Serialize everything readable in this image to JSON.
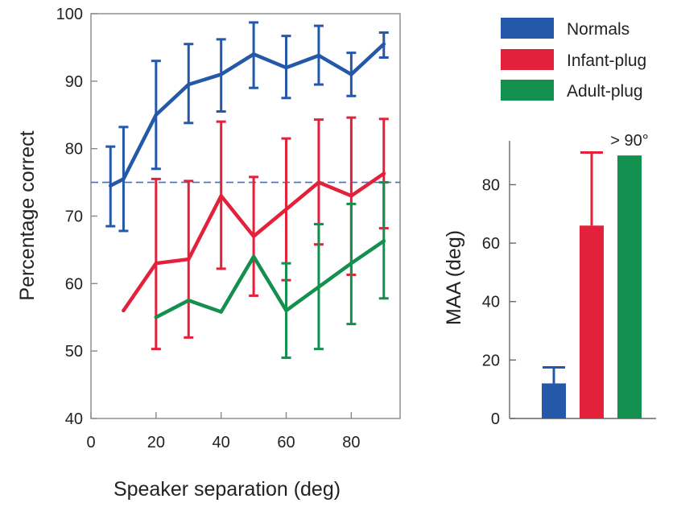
{
  "legend": {
    "placement": "top-right",
    "entries": [
      {
        "label": "Normals",
        "color": "#2458a8"
      },
      {
        "label": "Infant-plug",
        "color": "#e3213a"
      },
      {
        "label": "Adult-plug",
        "color": "#14904e"
      }
    ]
  },
  "chart_data": [
    {
      "type": "line",
      "title": "",
      "xlabel": "Speaker separation (deg)",
      "ylabel": "Percentage correct",
      "xlim": [
        0,
        95
      ],
      "ylim": [
        40,
        100
      ],
      "xticks": [
        0,
        20,
        40,
        60,
        80
      ],
      "yticks": [
        40,
        50,
        60,
        70,
        80,
        90,
        100
      ],
      "grid": false,
      "reference_line": {
        "y": 75,
        "style": "dashed",
        "color": "#4a6fb0"
      },
      "series": [
        {
          "name": "Normals",
          "color": "#2458a8",
          "x": [
            6,
            10,
            20,
            30,
            40,
            50,
            60,
            70,
            80,
            90
          ],
          "y": [
            74.5,
            75.5,
            85,
            89.5,
            91,
            94,
            92,
            93.8,
            91,
            95.5
          ],
          "err_low": [
            68.5,
            67.8,
            77,
            83.8,
            85.5,
            89,
            87.5,
            89.5,
            87.8,
            93.5
          ],
          "err_high": [
            80.3,
            83.2,
            93,
            95.5,
            96.2,
            98.7,
            96.7,
            98.2,
            94.2,
            97.2
          ],
          "error_caps": [
            true,
            true,
            true,
            true,
            true,
            true,
            true,
            true,
            true,
            true
          ]
        },
        {
          "name": "Infant-plug",
          "color": "#e3213a",
          "x": [
            10,
            20,
            30,
            40,
            50,
            60,
            70,
            80,
            90
          ],
          "y": [
            56,
            63,
            63.6,
            73,
            67,
            71,
            75,
            73,
            76.3
          ],
          "err_low": [
            56,
            50.3,
            52,
            62.2,
            58.2,
            60.5,
            65.8,
            61.3,
            68.2
          ],
          "err_high": [
            56,
            75.5,
            75.2,
            84,
            75.8,
            81.5,
            84.3,
            84.6,
            84.4
          ],
          "error_caps": [
            false,
            true,
            true,
            true,
            true,
            true,
            true,
            true,
            true
          ]
        },
        {
          "name": "Adult-plug",
          "color": "#14904e",
          "x": [
            20,
            30,
            40,
            50,
            60,
            70,
            80,
            90
          ],
          "y": [
            55,
            57.5,
            55.8,
            64,
            56,
            59.5,
            63,
            66.3
          ],
          "err_low": [
            55,
            57.5,
            55.8,
            64,
            49,
            50.3,
            54,
            57.8
          ],
          "err_high": [
            55,
            57.5,
            55.8,
            64,
            63,
            68.8,
            71.8,
            75
          ],
          "error_caps": [
            false,
            false,
            false,
            false,
            true,
            true,
            true,
            true
          ]
        }
      ]
    },
    {
      "type": "bar",
      "title": "",
      "xlabel": "",
      "ylabel": "MAA (deg)",
      "ylim": [
        0,
        95
      ],
      "yticks": [
        0,
        20,
        40,
        60,
        80
      ],
      "grid": false,
      "categories": [
        "Normals",
        "Infant-plug",
        "Adult-plug"
      ],
      "values": [
        12,
        66,
        90
      ],
      "colors": [
        "#2458a8",
        "#e3213a",
        "#14904e"
      ],
      "err_high": [
        17.5,
        91,
        null
      ],
      "annotations": [
        {
          "category": "Adult-plug",
          "text": "> 90°"
        }
      ]
    }
  ]
}
